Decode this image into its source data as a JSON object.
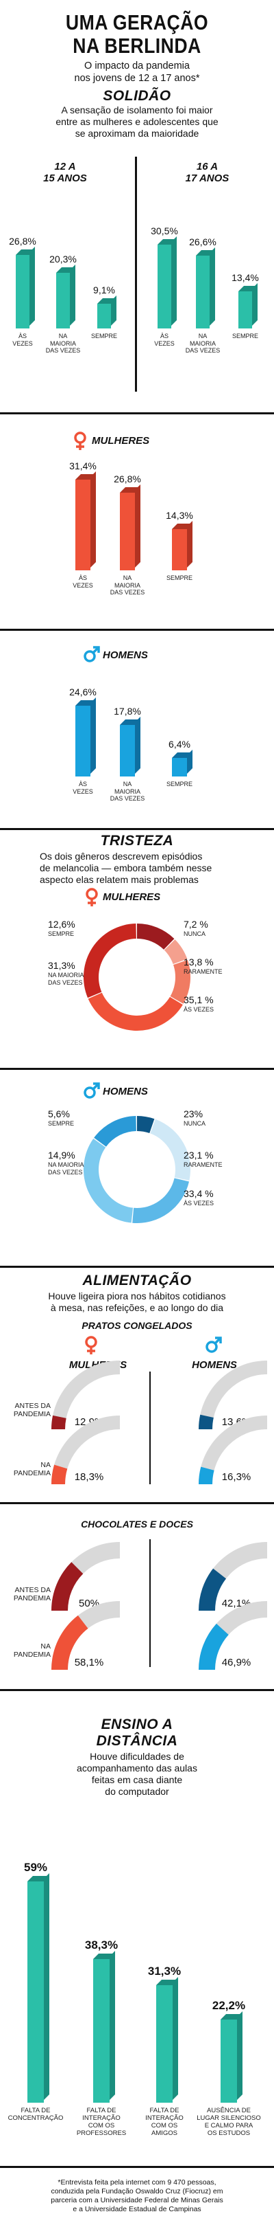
{
  "colors": {
    "teal": "#2bbfa8",
    "teal_dark": "#1a8e7e",
    "red": "#ef5238",
    "red_dark": "#b13322",
    "blue": "#19a3de",
    "blue_dark": "#0f6fa0",
    "dark_red": "#9c1b1f",
    "orange": "#ef5238",
    "pink": "#f4a08e",
    "navy": "#0d5585",
    "mid_blue": "#2a9ad7",
    "light_blue": "#7ccaef",
    "gray": "#d9d9d9"
  },
  "header": {
    "title_line1": "UMA GERAÇÃO",
    "title_line2": "NA BERLINDA",
    "subtitle_line1": "O impacto da pandemia",
    "subtitle_line2": "nos jovens de 12 a 17 anos*"
  },
  "solidao": {
    "title": "SOLIDÃO",
    "desc": [
      "A sensação de isolamento foi maior",
      "entre as mulheres e adolescentes que",
      "se aproximam da maioridade"
    ],
    "age_12_15": {
      "line1": "12 A",
      "line2": "15 ANOS"
    },
    "age_16_17": {
      "line1": "16 A",
      "line2": "17 ANOS"
    },
    "women_label": "MULHERES",
    "men_label": "HOMENS"
  },
  "tristeza": {
    "title": "TRISTEZA",
    "desc": [
      "Os dois gêneros descrevem episódios",
      "de melancolia — embora também nesse",
      "aspecto elas relatem mais problemas"
    ],
    "women_label": "MULHERES",
    "men_label": "HOMENS"
  },
  "alimentacao": {
    "title": "ALIMENTAÇÃO",
    "desc": [
      "Houve ligeira piora nos hábitos cotidianos",
      "à mesa, nas refeições, e ao longo do dia"
    ],
    "pratos_title": "PRATOS CONGELADOS",
    "chocolates_title": "CHOCOLATES E DOCES",
    "women_label": "MULHERES",
    "men_label": "HOMENS",
    "row_antes": [
      "ANTES DA",
      "PANDEMIA"
    ],
    "row_na": [
      "NA",
      "PANDEMIA"
    ]
  },
  "ensino": {
    "title_line1": "ENSINO A",
    "title_line2": "DISTÂNCIA",
    "desc": [
      "Houve dificuldades de",
      "acompanhamento das aulas",
      "feitas em casa diante",
      "do computador"
    ]
  },
  "footnote": [
    "*Entrevista feita pela internet com 9 470 pessoas,",
    "conduzida pela Fundação Oswaldo Cruz (Fiocruz) em",
    "parceria com a Universidade Federal de Minas Gerais",
    "e a Universidade Estadual de Campinas"
  ],
  "chart_data": [
    {
      "type": "bar",
      "name": "solidao-12-15",
      "categories": [
        [
          "ÀS",
          "VEZES"
        ],
        [
          "NA",
          "MAIORIA",
          "DAS VEZES"
        ],
        [
          "SEMPRE"
        ]
      ],
      "values": [
        26.8,
        20.3,
        9.1
      ],
      "labels": [
        "26,8%",
        "20,3%",
        "9,1%"
      ]
    },
    {
      "type": "bar",
      "name": "solidao-16-17",
      "categories": [
        [
          "ÀS",
          "VEZES"
        ],
        [
          "NA",
          "MAIORIA",
          "DAS VEZES"
        ],
        [
          "SEMPRE"
        ]
      ],
      "values": [
        30.5,
        26.6,
        13.4
      ],
      "labels": [
        "30,5%",
        "26,6%",
        "13,4%"
      ]
    },
    {
      "type": "bar",
      "name": "solidao-mulheres",
      "categories": [
        [
          "ÀS",
          "VEZES"
        ],
        [
          "NA",
          "MAIORIA",
          "DAS VEZES"
        ],
        [
          "SEMPRE"
        ]
      ],
      "values": [
        31.4,
        26.8,
        14.3
      ],
      "labels": [
        "31,4%",
        "26,8%",
        "14,3%"
      ]
    },
    {
      "type": "bar",
      "name": "solidao-homens",
      "categories": [
        [
          "ÀS",
          "VEZES"
        ],
        [
          "NA",
          "MAIORIA",
          "DAS VEZES"
        ],
        [
          "SEMPRE"
        ]
      ],
      "values": [
        24.6,
        17.8,
        6.4
      ],
      "labels": [
        "24,6%",
        "17,8%",
        "6,4%"
      ]
    },
    {
      "type": "pie",
      "name": "tristeza-mulheres",
      "slices": [
        {
          "label": "SEMPRE",
          "value": 12.6,
          "text": "12,6%"
        },
        {
          "label": "NUNCA",
          "value": 7.2,
          "text": "7,2 %"
        },
        {
          "label": "RARAMENTE",
          "value": 13.8,
          "text": "13,8 %"
        },
        {
          "label": "ÀS VEZES",
          "value": 35.1,
          "text": "35,1 %"
        },
        {
          "label": "NA MAIORIA DAS VEZES",
          "value": 31.3,
          "text": "31,3%"
        }
      ]
    },
    {
      "type": "pie",
      "name": "tristeza-homens",
      "slices": [
        {
          "label": "SEMPRE",
          "value": 5.6,
          "text": "5,6%"
        },
        {
          "label": "NUNCA",
          "value": 23,
          "text": "23%"
        },
        {
          "label": "RARAMENTE",
          "value": 23.1,
          "text": "23,1 %"
        },
        {
          "label": "ÀS VEZES",
          "value": 33.4,
          "text": "33,4 %"
        },
        {
          "label": "NA MAIORIA DAS VEZES",
          "value": 14.9,
          "text": "14,9%"
        }
      ]
    },
    {
      "type": "gauge",
      "name": "pratos-congelados",
      "rows": [
        "ANTES DA PANDEMIA",
        "NA PANDEMIA"
      ],
      "series": [
        {
          "name": "MULHERES",
          "values": [
            12.9,
            18.3
          ],
          "labels": [
            "12,9%",
            "18,3%"
          ]
        },
        {
          "name": "HOMENS",
          "values": [
            13.6,
            16.3
          ],
          "labels": [
            "13,6%",
            "16,3%"
          ]
        }
      ]
    },
    {
      "type": "gauge",
      "name": "chocolates-e-doces",
      "rows": [
        "ANTES DA PANDEMIA",
        "NA PANDEMIA"
      ],
      "series": [
        {
          "name": "MULHERES",
          "values": [
            50,
            58.1
          ],
          "labels": [
            "50%",
            "58,1%"
          ]
        },
        {
          "name": "HOMENS",
          "values": [
            42.1,
            46.9
          ],
          "labels": [
            "42,1%",
            "46,9%"
          ]
        }
      ]
    },
    {
      "type": "bar",
      "name": "ensino-a-distancia",
      "categories": [
        [
          "FALTA DE",
          "CONCENTRAÇÃO"
        ],
        [
          "FALTA DE",
          "INTERAÇÃO",
          "COM OS",
          "PROFESSORES"
        ],
        [
          "FALTA DE",
          "INTERAÇÃO",
          "COM OS",
          "AMIGOS"
        ],
        [
          "AUSÊNCIA DE",
          "LUGAR SILENCIOSO",
          "E CALMO PARA",
          "OS ESTUDOS"
        ]
      ],
      "values": [
        59,
        38.3,
        31.3,
        22.2
      ],
      "labels": [
        "59%",
        "38,3%",
        "31,3%",
        "22,2%"
      ]
    }
  ]
}
